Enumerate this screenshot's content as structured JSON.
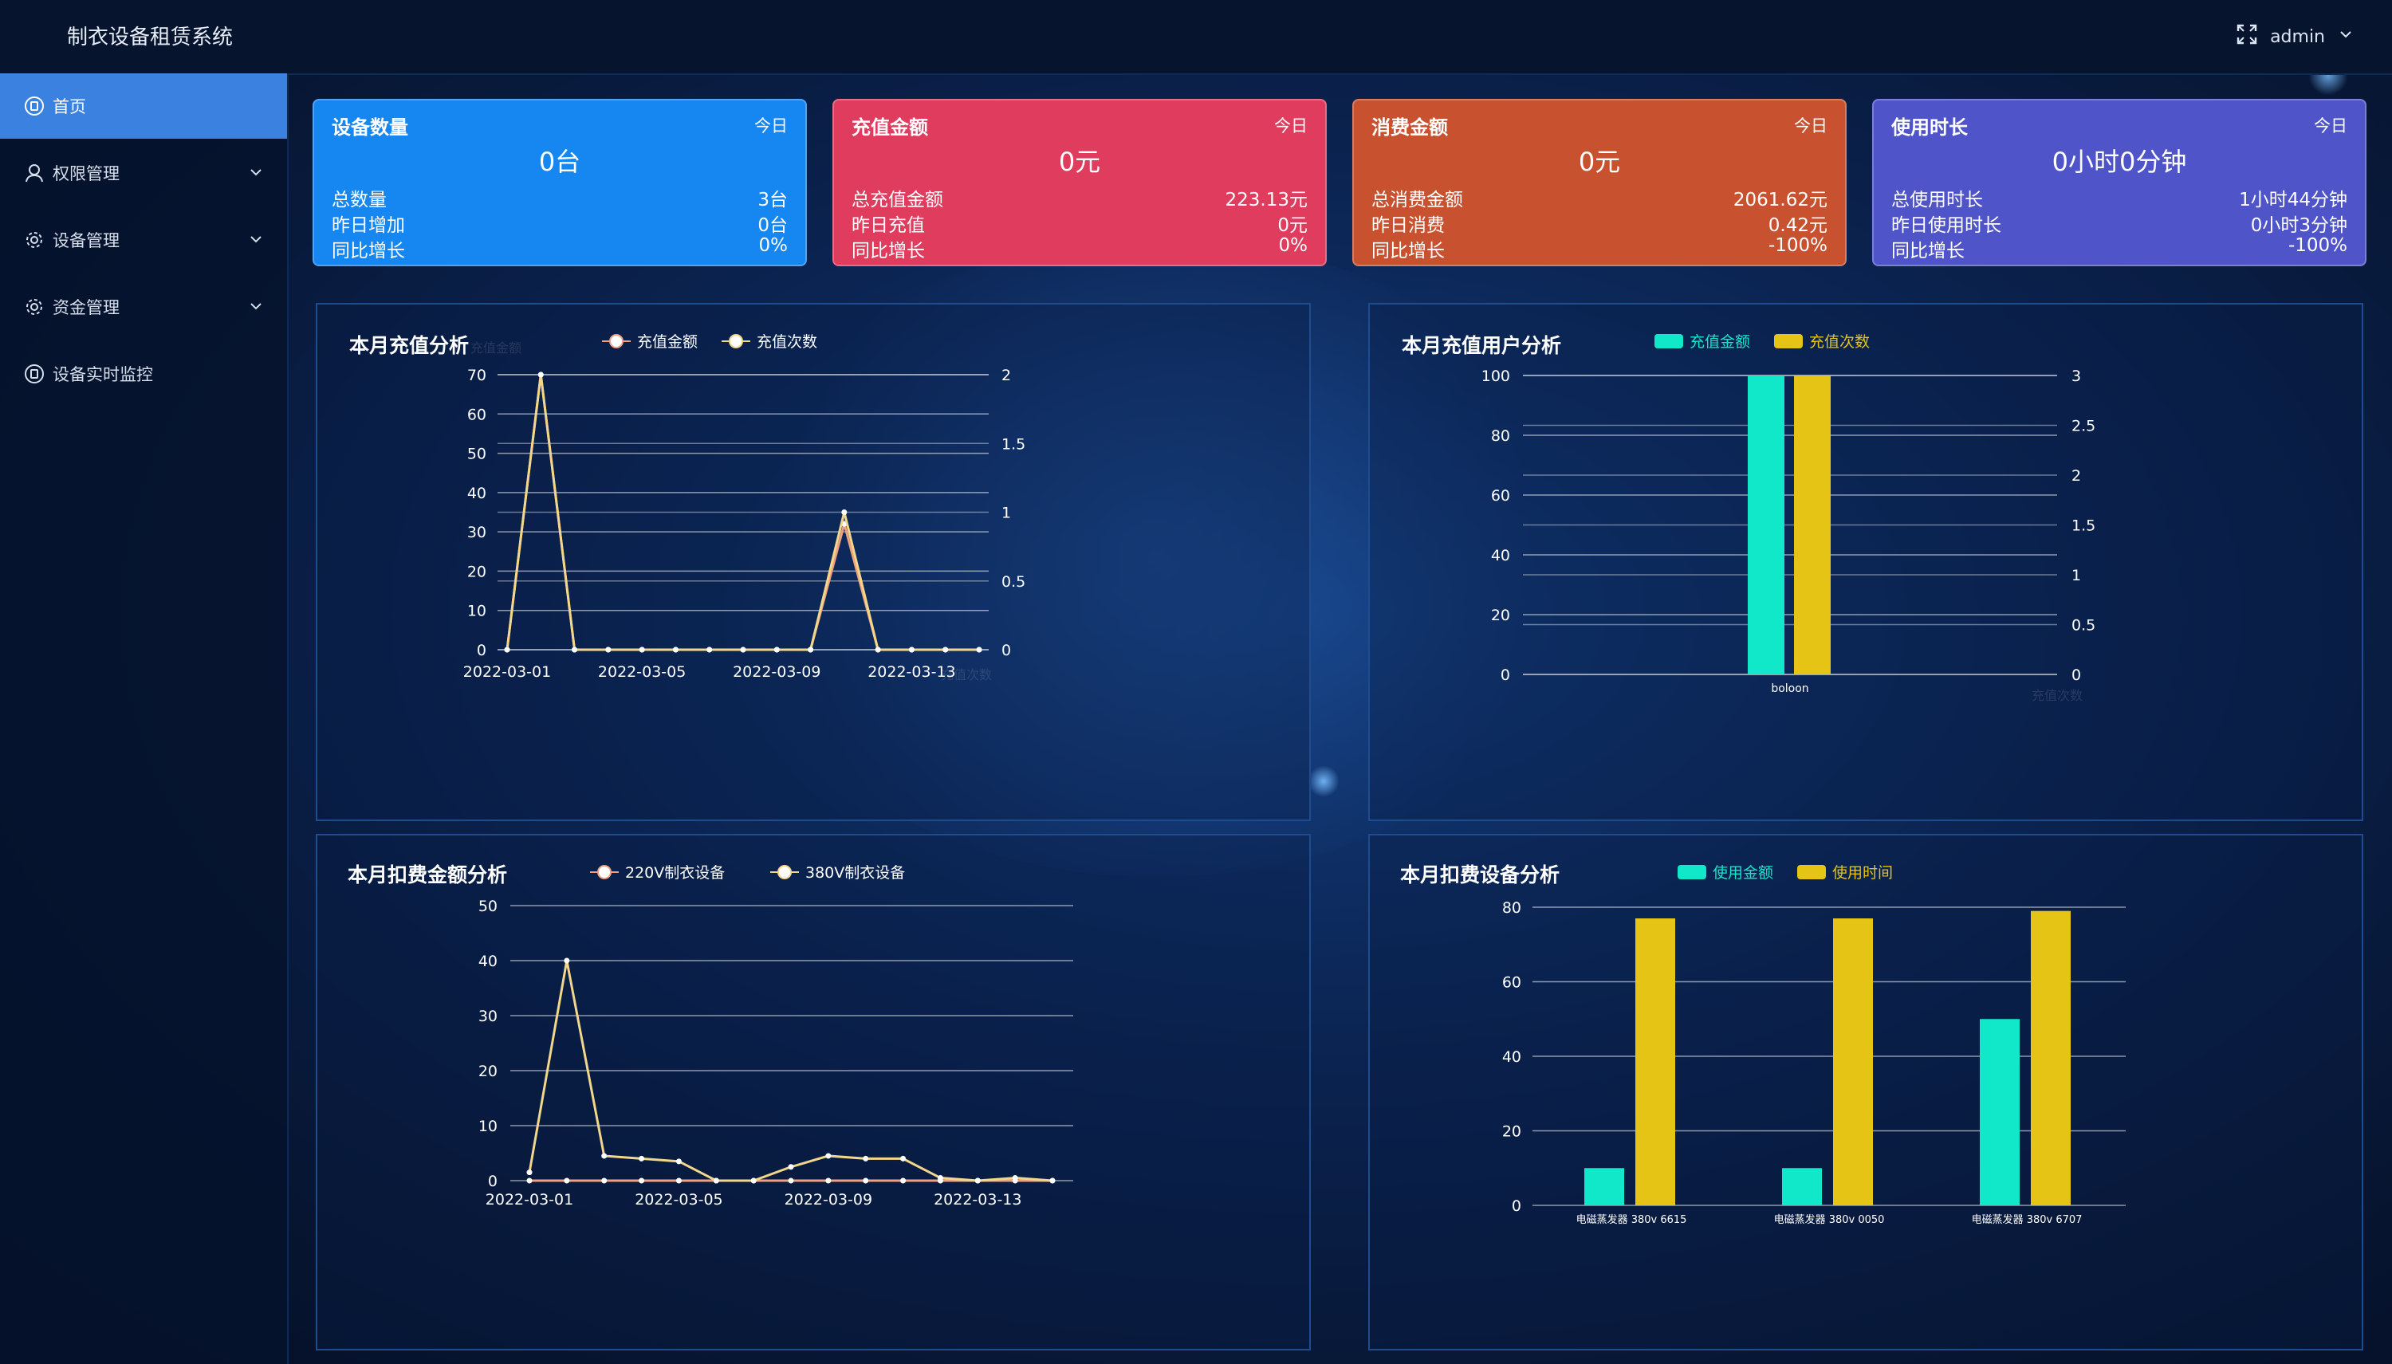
{
  "app": {
    "title": "制衣设备租赁系统",
    "user": "admin"
  },
  "sidebar": {
    "items": [
      {
        "label": "首页",
        "icon": "home-icon",
        "active": true,
        "expandable": false
      },
      {
        "label": "权限管理",
        "icon": "user-icon",
        "active": false,
        "expandable": true
      },
      {
        "label": "设备管理",
        "icon": "gear-icon",
        "active": false,
        "expandable": true
      },
      {
        "label": "资金管理",
        "icon": "gear-icon",
        "active": false,
        "expandable": true
      },
      {
        "label": "设备实时监控",
        "icon": "monitor-icon",
        "active": false,
        "expandable": false
      }
    ]
  },
  "cards": [
    {
      "title": "设备数量",
      "tag": "今日",
      "value": "0台",
      "color": "#1686f0",
      "rows": [
        {
          "label": "总数量",
          "value": "3台"
        },
        {
          "label": "昨日增加",
          "value": "0台"
        },
        {
          "label": "同比增长",
          "value": "0%"
        }
      ]
    },
    {
      "title": "充值金额",
      "tag": "今日",
      "value": "0元",
      "color": "#e03c5e",
      "rows": [
        {
          "label": "总充值金额",
          "value": "223.13元"
        },
        {
          "label": "昨日充值",
          "value": "0元"
        },
        {
          "label": "同比增长",
          "value": "0%"
        }
      ]
    },
    {
      "title": "消费金额",
      "tag": "今日",
      "value": "0元",
      "color": "#c8522f",
      "rows": [
        {
          "label": "总消费金额",
          "value": "2061.62元"
        },
        {
          "label": "昨日消费",
          "value": "0.42元"
        },
        {
          "label": "同比增长",
          "value": "-100%"
        }
      ]
    },
    {
      "title": "使用时长",
      "tag": "今日",
      "value": "0小时0分钟",
      "color": "#4f55c8",
      "rows": [
        {
          "label": "总使用时长",
          "value": "1小时44分钟"
        },
        {
          "label": "昨日使用时长",
          "value": "0小时3分钟"
        },
        {
          "label": "同比增长",
          "value": "-100%"
        }
      ]
    }
  ],
  "colors": {
    "line_a": "#f0a080",
    "line_b": "#f2d68a",
    "bar_a": "#11e8c9",
    "bar_b": "#e6c415"
  },
  "chart_data": [
    {
      "type": "line",
      "title": "本月充值分析",
      "left_axis_label": "充值金额",
      "right_axis_label": "充值次数",
      "x": [
        "2022-03-01",
        "2022-03-02",
        "2022-03-03",
        "2022-03-04",
        "2022-03-05",
        "2022-03-06",
        "2022-03-07",
        "2022-03-08",
        "2022-03-09",
        "2022-03-10",
        "2022-03-11",
        "2022-03-12",
        "2022-03-13",
        "2022-03-14",
        "2022-03-15"
      ],
      "x_tick_labels": [
        "2022-03-01",
        "2022-03-05",
        "2022-03-09",
        "2022-03-13"
      ],
      "series": [
        {
          "name": "充值金额",
          "axis": "left",
          "values": [
            0,
            70,
            0,
            0,
            0,
            0,
            0,
            0,
            0,
            0,
            32,
            0,
            0,
            0,
            0
          ]
        },
        {
          "name": "充值次数",
          "axis": "right",
          "values": [
            0,
            2,
            0,
            0,
            0,
            0,
            0,
            0,
            0,
            0,
            1,
            0,
            0,
            0,
            0
          ]
        }
      ],
      "ylim_left": [
        0,
        70
      ],
      "yticks_left": [
        0,
        10,
        20,
        30,
        40,
        50,
        60,
        70
      ],
      "ylim_right": [
        0,
        2
      ],
      "yticks_right": [
        "0",
        "0.5",
        "1",
        "1.5",
        "2"
      ],
      "legend": "top-center",
      "grid": true
    },
    {
      "type": "bar",
      "title": "本月充值用户分析",
      "right_axis_label": "充值次数",
      "categories": [
        "boloon"
      ],
      "series": [
        {
          "name": "充值金额",
          "axis": "left",
          "values": [
            100
          ]
        },
        {
          "name": "充值次数",
          "axis": "right",
          "values": [
            3
          ]
        }
      ],
      "ylim_left": [
        0,
        100
      ],
      "yticks_left": [
        0,
        20,
        40,
        60,
        80,
        100
      ],
      "ylim_right": [
        0,
        3
      ],
      "yticks_right": [
        "0",
        "0.5",
        "1",
        "1.5",
        "2",
        "2.5",
        "3"
      ],
      "legend": "top-center",
      "grid": true
    },
    {
      "type": "line",
      "title": "本月扣费金额分析",
      "x": [
        "2022-03-01",
        "2022-03-02",
        "2022-03-03",
        "2022-03-04",
        "2022-03-05",
        "2022-03-06",
        "2022-03-07",
        "2022-03-08",
        "2022-03-09",
        "2022-03-10",
        "2022-03-11",
        "2022-03-12",
        "2022-03-13",
        "2022-03-14",
        "2022-03-15"
      ],
      "x_tick_labels": [
        "2022-03-01",
        "2022-03-05",
        "2022-03-09",
        "2022-03-13"
      ],
      "series": [
        {
          "name": "220V制衣设备",
          "values": [
            0,
            0,
            0,
            0,
            0,
            0,
            0,
            0,
            0,
            0,
            0,
            0,
            0,
            0,
            0
          ]
        },
        {
          "name": "380V制衣设备",
          "values": [
            1.5,
            40,
            4.5,
            4,
            3.5,
            0,
            0,
            2.5,
            4.5,
            4,
            4,
            0.5,
            0,
            0.5,
            0
          ]
        }
      ],
      "ylim": [
        0,
        50
      ],
      "yticks": [
        0,
        10,
        20,
        30,
        40,
        50
      ],
      "legend": "top-center",
      "grid": true
    },
    {
      "type": "bar",
      "title": "本月扣费设备分析",
      "categories": [
        "电磁蒸发器 380v  6615",
        "电磁蒸发器 380v 0050",
        "电磁蒸发器 380v 6707"
      ],
      "series": [
        {
          "name": "使用金额",
          "values": [
            10,
            10,
            50
          ]
        },
        {
          "name": "使用时间",
          "values": [
            77,
            77,
            79
          ]
        }
      ],
      "ylim": [
        0,
        80
      ],
      "yticks": [
        0,
        20,
        40,
        60,
        80
      ],
      "legend": "top-center",
      "grid": true
    }
  ]
}
